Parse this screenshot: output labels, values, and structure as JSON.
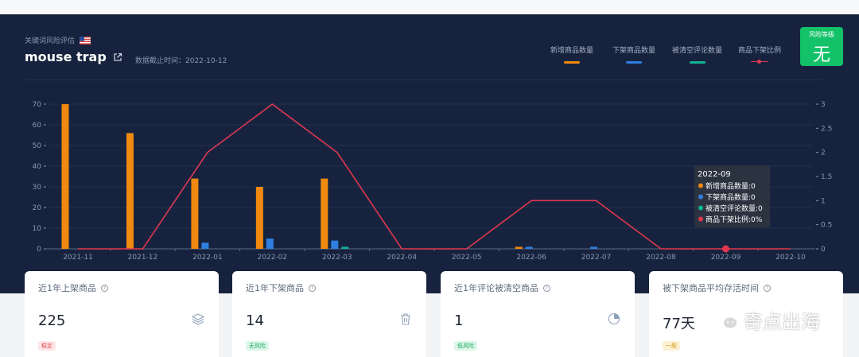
{
  "header": {
    "pre_title": "关键词风险评估",
    "keyword": "mouse trap",
    "date_note": "数据截止时间：2022-10-12"
  },
  "legend": [
    {
      "label": "新增商品数量",
      "color": "#f0890f",
      "kind": "bar"
    },
    {
      "label": "下架商品数量",
      "color": "#2f7ee0",
      "kind": "bar"
    },
    {
      "label": "被清空评论数量",
      "color": "#11b394",
      "kind": "bar"
    },
    {
      "label": "商品下架比例",
      "color": "#e0374f",
      "kind": "line"
    }
  ],
  "risk": {
    "label": "风险等级",
    "value": "无",
    "color": "#12c168"
  },
  "chart_data": {
    "type": "bar",
    "categories": [
      "2021-11",
      "2021-12",
      "2022-01",
      "2022-02",
      "2022-03",
      "2022-04",
      "2022-05",
      "2022-06",
      "2022-07",
      "2022-08",
      "2022-09",
      "2022-10"
    ],
    "series": [
      {
        "name": "新增商品数量",
        "type": "bar",
        "axis": "left",
        "color": "#f0890f",
        "values": [
          70,
          56,
          34,
          30,
          34,
          0,
          0,
          1,
          0,
          0,
          0,
          0
        ]
      },
      {
        "name": "下架商品数量",
        "type": "bar",
        "axis": "left",
        "color": "#2f7ee0",
        "values": [
          0,
          0,
          3,
          5,
          4,
          0,
          0,
          1,
          1,
          0,
          0,
          0
        ]
      },
      {
        "name": "被清空评论数量",
        "type": "bar",
        "axis": "left",
        "color": "#11b394",
        "values": [
          0,
          0,
          0,
          0,
          1,
          0,
          0,
          0,
          0,
          0,
          0,
          0
        ]
      },
      {
        "name": "商品下架比例",
        "type": "line",
        "axis": "right",
        "color": "#e0374f",
        "values": [
          0,
          0,
          2,
          3,
          2,
          0,
          0,
          1,
          1,
          0,
          0,
          0
        ]
      }
    ],
    "left_ticks": [
      "0",
      "10",
      "20",
      "30",
      "40",
      "50",
      "60",
      "70"
    ],
    "right_ticks": [
      "0",
      "0.5",
      "1",
      "1.5",
      "2",
      "2.5",
      "3"
    ],
    "ylim_left": [
      0,
      70
    ],
    "ylim_right": [
      0,
      3
    ],
    "grid": true,
    "tooltip": {
      "category_index": 10,
      "title": "2022-09",
      "lines": [
        "新增商品数量:0",
        "下架商品数量:0",
        "被清空评论数量:0",
        "商品下架比例:0%"
      ]
    }
  },
  "cards": [
    {
      "title": "近1年上架商品",
      "value": "225",
      "badge": "稳定",
      "badge_color": "#e5484d",
      "badge_bg": "#fde6e7",
      "icon": "layers-icon"
    },
    {
      "title": "近1年下架商品",
      "value": "14",
      "badge": "无风险",
      "badge_color": "#12a85b",
      "badge_bg": "#dcf6e7",
      "icon": "trash-icon"
    },
    {
      "title": "近1年评论被清空商品",
      "value": "1",
      "badge": "低风险",
      "badge_color": "#12a85b",
      "badge_bg": "#dcf6e7",
      "icon": "pie-chart-icon"
    },
    {
      "title": "被下架商品平均存活时间",
      "value": "77天",
      "badge": "一般",
      "badge_color": "#d49a12",
      "badge_bg": "#fdf1d3",
      "icon": "clock-icon"
    }
  ],
  "watermark": {
    "text": "奇点出海",
    "icon": "wechat-icon"
  }
}
